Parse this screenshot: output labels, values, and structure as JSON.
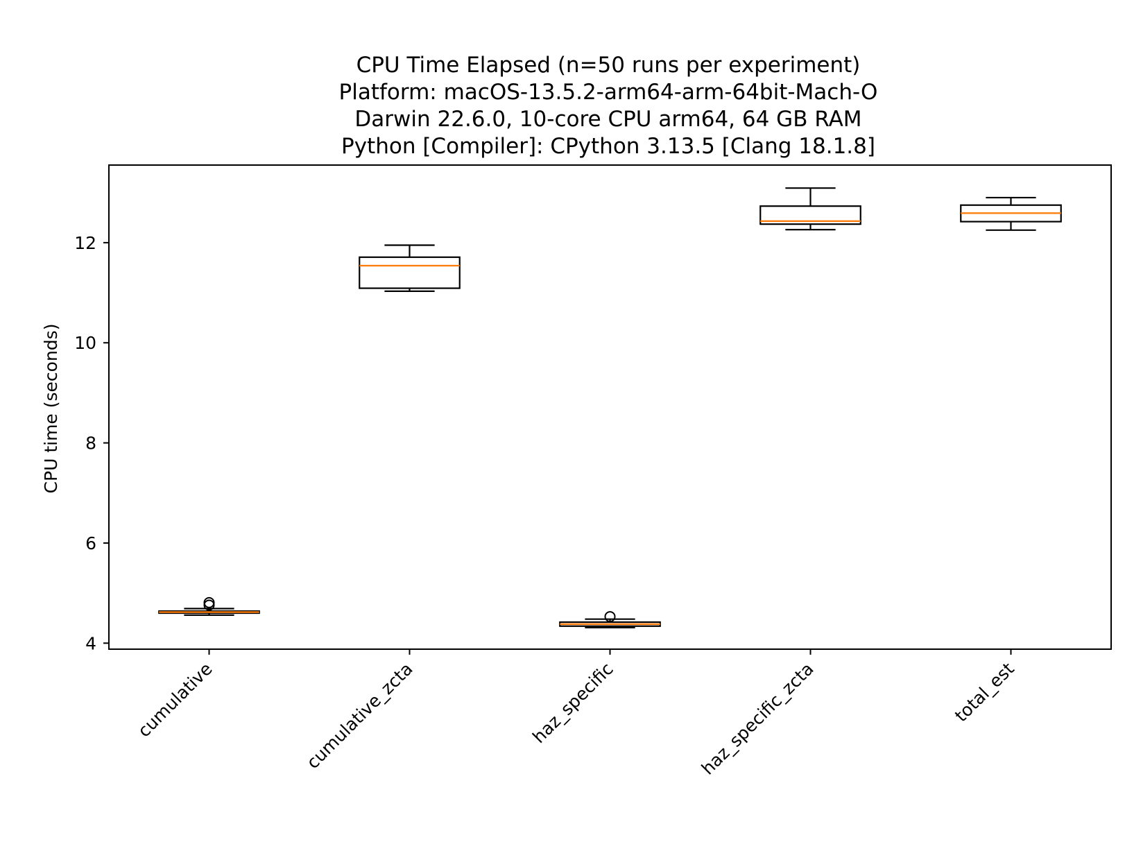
{
  "chart_data": {
    "type": "boxplot",
    "title_lines": [
      "CPU Time Elapsed (n=50 runs per experiment)",
      "Platform: macOS-13.5.2-arm64-arm-64bit-Mach-O",
      "Darwin 22.6.0, 10-core CPU arm64, 64 GB RAM",
      "Python [Compiler]: CPython 3.13.5 [Clang 18.1.8]"
    ],
    "xlabel": "",
    "ylabel": "CPU time (seconds)",
    "ylim": [
      3.88,
      13.55
    ],
    "yticks": [
      4,
      6,
      8,
      10,
      12
    ],
    "grid": false,
    "colors": {
      "box": "#000000",
      "median": "#ff7f0e"
    },
    "categories": [
      "cumulative",
      "cumulative_zcta",
      "haz_specific",
      "haz_specific_zcta",
      "total_est"
    ],
    "boxes": [
      {
        "whisker_low": 4.56,
        "q1": 4.6,
        "median": 4.62,
        "q3": 4.64,
        "whisker_high": 4.69,
        "outliers": [
          4.76,
          4.81
        ]
      },
      {
        "whisker_low": 11.03,
        "q1": 11.09,
        "median": 11.54,
        "q3": 11.71,
        "whisker_high": 11.95,
        "outliers": []
      },
      {
        "whisker_low": 4.31,
        "q1": 4.34,
        "median": 4.38,
        "q3": 4.42,
        "whisker_high": 4.48,
        "outliers": [
          4.53
        ]
      },
      {
        "whisker_low": 12.26,
        "q1": 12.37,
        "median": 12.43,
        "q3": 12.73,
        "whisker_high": 13.09,
        "outliers": []
      },
      {
        "whisker_low": 12.25,
        "q1": 12.42,
        "median": 12.59,
        "q3": 12.75,
        "whisker_high": 12.9,
        "outliers": []
      }
    ]
  }
}
